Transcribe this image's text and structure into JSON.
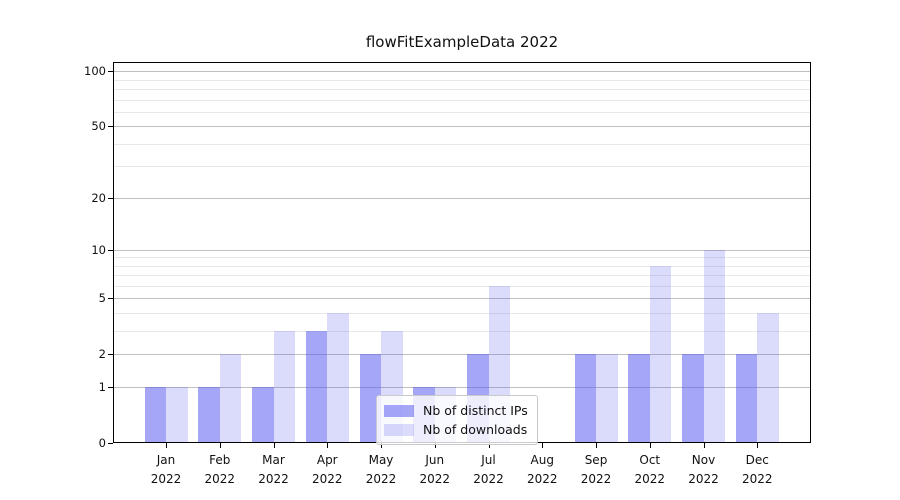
{
  "title": "flowFitExampleData 2022",
  "legend": {
    "items": [
      {
        "label": "Nb of distinct IPs"
      },
      {
        "label": "Nb of downloads"
      }
    ]
  },
  "chart_data": {
    "type": "bar",
    "title": "flowFitExampleData 2022",
    "categories": [
      {
        "month": "Jan",
        "year": "2022"
      },
      {
        "month": "Feb",
        "year": "2022"
      },
      {
        "month": "Mar",
        "year": "2022"
      },
      {
        "month": "Apr",
        "year": "2022"
      },
      {
        "month": "May",
        "year": "2022"
      },
      {
        "month": "Jun",
        "year": "2022"
      },
      {
        "month": "Jul",
        "year": "2022"
      },
      {
        "month": "Aug",
        "year": "2022"
      },
      {
        "month": "Sep",
        "year": "2022"
      },
      {
        "month": "Oct",
        "year": "2022"
      },
      {
        "month": "Nov",
        "year": "2022"
      },
      {
        "month": "Dec",
        "year": "2022"
      }
    ],
    "series": [
      {
        "name": "Nb of distinct IPs",
        "color": "rgba(85,85,240,0.52)",
        "values": [
          1,
          1,
          1,
          3,
          2,
          1,
          2,
          0,
          2,
          2,
          2,
          2
        ]
      },
      {
        "name": "Nb of downloads",
        "color": "rgba(85,85,240,0.21)",
        "values": [
          1,
          2,
          3,
          4,
          3,
          1,
          6,
          0,
          2,
          8,
          10,
          4
        ]
      }
    ],
    "xlabel": "",
    "ylabel": "",
    "yscale": "log1p",
    "ylim": [
      0,
      112
    ],
    "y_major_ticks": [
      0,
      1,
      2,
      5,
      10,
      20,
      50,
      100
    ],
    "y_minor_gridlines": [
      3,
      4,
      6,
      7,
      8,
      9,
      30,
      40,
      60,
      70,
      80,
      90
    ],
    "grid": true,
    "legend_position": "inside lower-center"
  },
  "colors": {
    "bar_distinct_ips": "#a8a8f5",
    "bar_downloads": "#dbdbf7",
    "grid_major": "#c0c0c0",
    "grid_minor": "#e8e8e8",
    "axis": "#000000"
  }
}
